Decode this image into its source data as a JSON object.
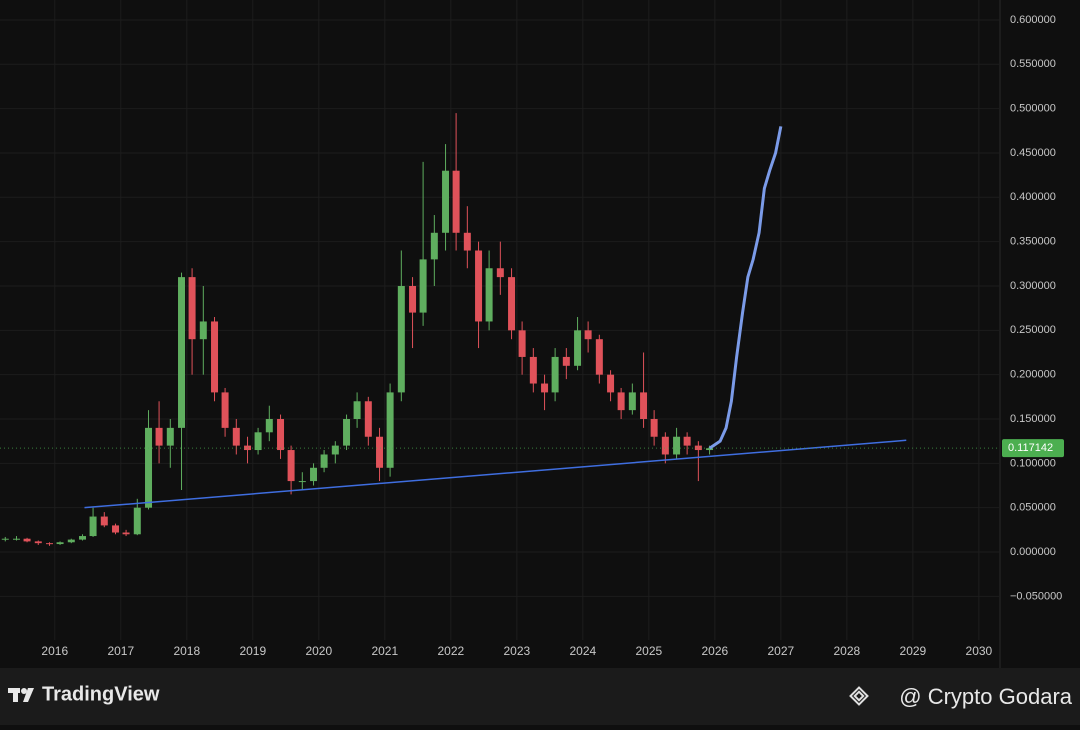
{
  "chart_data": {
    "type": "candlestick",
    "xlim": [
      2015.17,
      2030.32
    ],
    "xticks": [
      2016,
      2017,
      2018,
      2019,
      2020,
      2021,
      2022,
      2023,
      2024,
      2025,
      2026,
      2027,
      2028,
      2029,
      2030
    ],
    "ylim": [
      -0.1274,
      0.6225
    ],
    "yticks": [
      {
        "value": -0.05,
        "label": "−0.050000"
      },
      {
        "value": 0,
        "label": "0.000000"
      },
      {
        "value": 0.05,
        "label": "0.050000"
      },
      {
        "value": 0.1,
        "label": "0.100000"
      },
      {
        "value": 0.15,
        "label": "0.150000"
      },
      {
        "value": 0.2,
        "label": "0.200000"
      },
      {
        "value": 0.25,
        "label": "0.250000"
      },
      {
        "value": 0.3,
        "label": "0.300000"
      },
      {
        "value": 0.35,
        "label": "0.350000"
      },
      {
        "value": 0.4,
        "label": "0.400000"
      },
      {
        "value": 0.45,
        "label": "0.450000"
      },
      {
        "value": 0.5,
        "label": "0.500000"
      },
      {
        "value": 0.55,
        "label": "0.550000"
      },
      {
        "value": 0.6,
        "label": "0.600000"
      }
    ],
    "grid": true,
    "up_color": "#5fae5f",
    "down_color": "#e0525a",
    "x": [
      2015.25,
      2015.42,
      2015.58,
      2015.75,
      2015.92,
      2016.08,
      2016.25,
      2016.42,
      2016.58,
      2016.75,
      2016.92,
      2017.08,
      2017.25,
      2017.42,
      2017.58,
      2017.75,
      2017.92,
      2018.08,
      2018.25,
      2018.42,
      2018.58,
      2018.75,
      2018.92,
      2019.08,
      2019.25,
      2019.42,
      2019.58,
      2019.75,
      2019.92,
      2020.08,
      2020.25,
      2020.42,
      2020.58,
      2020.75,
      2020.92,
      2021.08,
      2021.25,
      2021.42,
      2021.58,
      2021.75,
      2021.92,
      2022.08,
      2022.25,
      2022.42,
      2022.58,
      2022.75,
      2022.92,
      2023.08,
      2023.25,
      2023.42,
      2023.58,
      2023.75,
      2023.92,
      2024.08,
      2024.25,
      2024.42,
      2024.58,
      2024.75,
      2024.92,
      2025.08,
      2025.25,
      2025.42,
      2025.58,
      2025.75,
      2025.92
    ],
    "open": [
      0.014,
      0.015,
      0.015,
      0.012,
      0.01,
      0.009,
      0.011,
      0.014,
      0.018,
      0.04,
      0.03,
      0.022,
      0.02,
      0.05,
      0.14,
      0.12,
      0.14,
      0.31,
      0.24,
      0.26,
      0.18,
      0.14,
      0.12,
      0.115,
      0.135,
      0.15,
      0.115,
      0.08,
      0.08,
      0.095,
      0.11,
      0.12,
      0.15,
      0.17,
      0.13,
      0.095,
      0.18,
      0.3,
      0.27,
      0.33,
      0.36,
      0.43,
      0.36,
      0.34,
      0.26,
      0.32,
      0.31,
      0.25,
      0.22,
      0.19,
      0.18,
      0.22,
      0.21,
      0.25,
      0.24,
      0.2,
      0.18,
      0.16,
      0.18,
      0.15,
      0.13,
      0.11,
      0.13,
      0.12,
      0.115
    ],
    "high": [
      0.017,
      0.018,
      0.016,
      0.013,
      0.011,
      0.012,
      0.015,
      0.02,
      0.05,
      0.045,
      0.032,
      0.025,
      0.06,
      0.16,
      0.17,
      0.15,
      0.315,
      0.32,
      0.3,
      0.265,
      0.185,
      0.15,
      0.13,
      0.14,
      0.165,
      0.155,
      0.12,
      0.09,
      0.1,
      0.115,
      0.125,
      0.155,
      0.18,
      0.175,
      0.14,
      0.19,
      0.34,
      0.31,
      0.44,
      0.38,
      0.46,
      0.495,
      0.39,
      0.35,
      0.34,
      0.35,
      0.32,
      0.26,
      0.23,
      0.2,
      0.23,
      0.23,
      0.265,
      0.26,
      0.245,
      0.205,
      0.185,
      0.19,
      0.225,
      0.16,
      0.135,
      0.14,
      0.135,
      0.125,
      0.12
    ],
    "low": [
      0.012,
      0.013,
      0.011,
      0.008,
      0.007,
      0.008,
      0.01,
      0.013,
      0.017,
      0.028,
      0.02,
      0.018,
      0.019,
      0.048,
      0.1,
      0.095,
      0.07,
      0.2,
      0.2,
      0.17,
      0.13,
      0.11,
      0.1,
      0.11,
      0.125,
      0.105,
      0.065,
      0.07,
      0.075,
      0.09,
      0.1,
      0.115,
      0.14,
      0.12,
      0.08,
      0.085,
      0.17,
      0.23,
      0.255,
      0.3,
      0.34,
      0.34,
      0.32,
      0.23,
      0.25,
      0.29,
      0.24,
      0.2,
      0.18,
      0.16,
      0.17,
      0.195,
      0.205,
      0.225,
      0.19,
      0.17,
      0.15,
      0.155,
      0.14,
      0.12,
      0.1,
      0.105,
      0.11,
      0.08,
      0.11
    ],
    "close": [
      0.015,
      0.015,
      0.012,
      0.01,
      0.009,
      0.011,
      0.014,
      0.018,
      0.04,
      0.03,
      0.022,
      0.02,
      0.05,
      0.14,
      0.12,
      0.14,
      0.31,
      0.24,
      0.26,
      0.18,
      0.14,
      0.12,
      0.115,
      0.135,
      0.15,
      0.115,
      0.08,
      0.08,
      0.095,
      0.11,
      0.12,
      0.15,
      0.17,
      0.13,
      0.095,
      0.18,
      0.3,
      0.27,
      0.33,
      0.36,
      0.43,
      0.36,
      0.34,
      0.26,
      0.32,
      0.31,
      0.25,
      0.22,
      0.19,
      0.18,
      0.22,
      0.21,
      0.25,
      0.24,
      0.2,
      0.18,
      0.16,
      0.18,
      0.15,
      0.13,
      0.11,
      0.13,
      0.12,
      0.115,
      0.117
    ],
    "projection": {
      "color": "#7b9be8",
      "x": [
        2025.92,
        2026.08,
        2026.17,
        2026.25,
        2026.33,
        2026.42,
        2026.5,
        2026.58,
        2026.67,
        2026.75,
        2026.83,
        2026.92,
        2027.0
      ],
      "y": [
        0.117,
        0.125,
        0.14,
        0.17,
        0.22,
        0.27,
        0.31,
        0.33,
        0.36,
        0.41,
        0.43,
        0.45,
        0.48
      ]
    },
    "trendline": {
      "color": "#3f6ee0",
      "x": [
        2016.45,
        2028.9
      ],
      "y": [
        0.05,
        0.126
      ]
    },
    "last_price": 0.117142,
    "last_price_color": "#4caf50"
  },
  "footer": {
    "brand": "TradingView",
    "watermark": "@ Crypto Godara"
  }
}
